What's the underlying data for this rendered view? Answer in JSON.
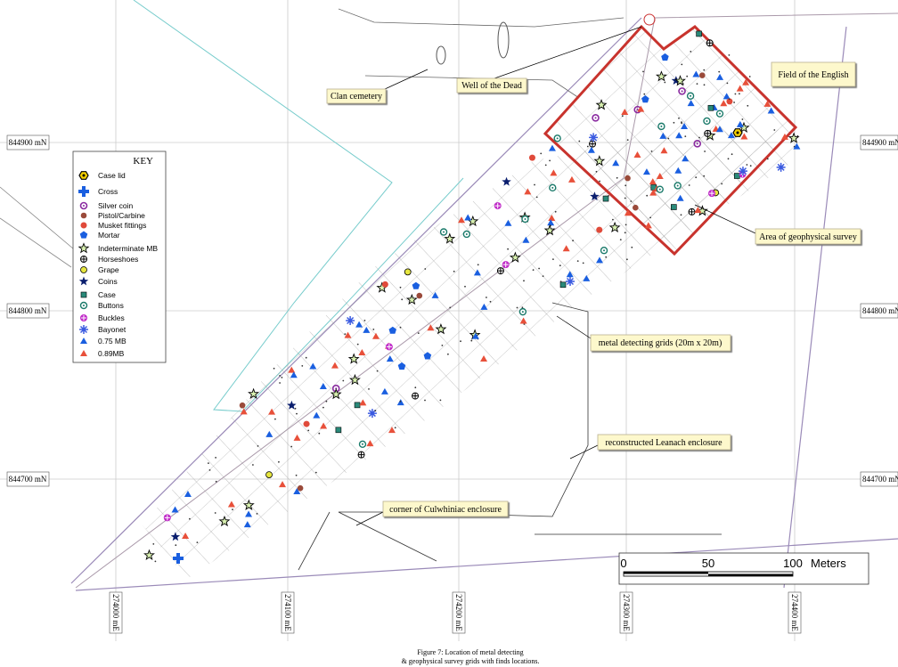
{
  "key": {
    "title": "KEY",
    "items": [
      "Case lid",
      "Cross",
      "Silver coin",
      "Pistol/Carbine",
      "Musket fittings",
      "Mortar",
      "Indeterminate MB",
      "Horseshoes",
      "Grape",
      "Coins",
      "Case",
      "Buttons",
      "Buckles",
      "Bayonet",
      "0.75 MB",
      "0.89MB"
    ]
  },
  "labels": {
    "clan_cemetery": "Clan cemetery",
    "well": "Well of the Dead",
    "field": "Field of the English",
    "geophysical": "Area of geophysical survey",
    "grids": "metal detecting grids (20m x 20m)",
    "leanach": "reconstructed Leanach enclosure",
    "culwhiniac": "corner of Culwhiniac enclosure"
  },
  "northings": [
    "844900 mN",
    "844800 mN",
    "844700 mN"
  ],
  "eastings": [
    "274000 mE",
    "274100 mE",
    "274200 mE",
    "274300 mE",
    "274400 mE"
  ],
  "scale": {
    "ticks": [
      0,
      50,
      100
    ],
    "unit": "Meters"
  },
  "caption": [
    "Figure 7: Location of metal detecting",
    "& geophysical survey grids with finds locations."
  ]
}
